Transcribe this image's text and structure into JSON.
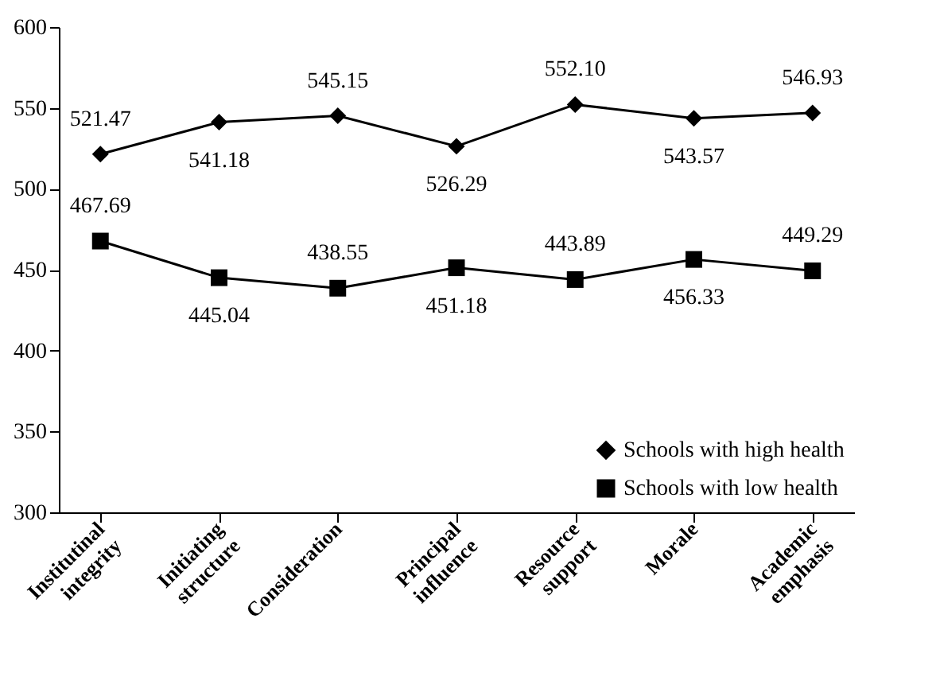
{
  "chart_data": {
    "type": "line",
    "categories": [
      "Institutinal integrity",
      "Initiating structure",
      "Consideration",
      "Principal influence",
      "Resource support",
      "Morale",
      "Academic emphasis"
    ],
    "series": [
      {
        "name": "Schools with high health",
        "color": "#000000",
        "marker": "diamond",
        "values": [
          521.47,
          541.18,
          545.15,
          526.29,
          552.1,
          543.57,
          546.93
        ],
        "value_labels": [
          "521.47",
          "541.18",
          "545.15",
          "526.29",
          "552.10",
          "543.57",
          "546.93"
        ]
      },
      {
        "name": "Schools with low health",
        "color": "#000000",
        "marker": "square",
        "values": [
          467.69,
          445.04,
          438.55,
          451.18,
          443.89,
          456.33,
          449.29
        ],
        "value_labels": [
          "467.69",
          "445.04",
          "438.55",
          "451.18",
          "443.89",
          "456.33",
          "449.29"
        ]
      }
    ],
    "ylim": [
      300,
      600
    ],
    "yticks": [
      300,
      350,
      400,
      450,
      500,
      550,
      600
    ],
    "grid": false,
    "legend": "bottom right",
    "line_style": "solid"
  }
}
